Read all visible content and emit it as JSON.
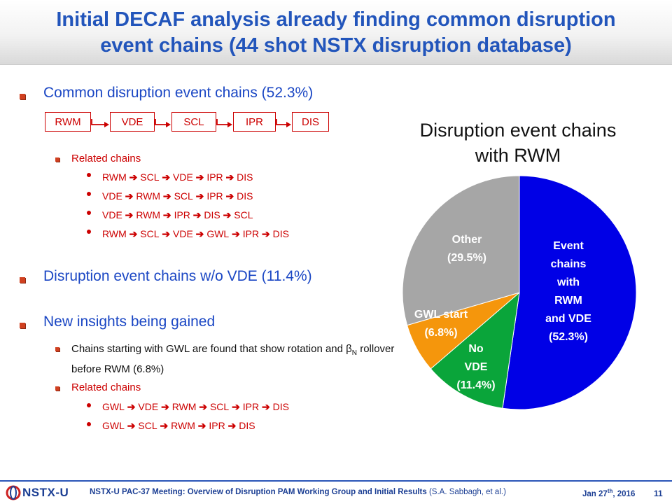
{
  "title": {
    "line1": "Initial DECAF analysis already finding common disruption",
    "line2": "event chains (44 shot NSTX disruption database)"
  },
  "common": {
    "heading": "Common disruption event chains (52.3%)",
    "chain": [
      "RWM",
      "VDE",
      "SCL",
      "IPR",
      "DIS"
    ],
    "related_label": "Related chains",
    "related": [
      [
        "RWM",
        "SCL",
        "VDE",
        "IPR",
        "DIS"
      ],
      [
        "VDE",
        "RWM",
        "SCL",
        "IPR",
        "DIS"
      ],
      [
        "VDE",
        "RWM",
        "IPR",
        "DIS",
        "SCL"
      ],
      [
        "RWM",
        "SCL",
        "VDE",
        "GWL",
        "IPR",
        "DIS"
      ]
    ]
  },
  "novde": {
    "heading": "Disruption event chains w/o VDE (11.4%)"
  },
  "insights": {
    "heading": "New insights being gained",
    "gwl_text_pre": "Chains starting with GWL are found that show rotation and ",
    "beta": "β",
    "beta_sub": "N",
    "gwl_text_post": " rollover before RWM (6.8%)",
    "related_label": "Related chains",
    "related": [
      [
        "GWL",
        "VDE",
        "RWM",
        "SCL",
        "IPR",
        "DIS"
      ],
      [
        "GWL",
        "SCL",
        "RWM",
        "IPR",
        "DIS"
      ]
    ]
  },
  "arrow_glyph": "➔",
  "chart_data": {
    "type": "pie",
    "title": "Disruption event chains with RWM",
    "start_angle_deg": 0,
    "direction": "clockwise",
    "slices": [
      {
        "label": [
          "Event",
          "chains",
          "with",
          "RWM",
          "and VDE",
          "(52.3%)"
        ],
        "value": 52.3,
        "color": "#0000e6"
      },
      {
        "label": [
          "No",
          "VDE",
          "(11.4%)"
        ],
        "value": 11.4,
        "color": "#0aa53a"
      },
      {
        "label": [
          "GWL start",
          "(6.8%)"
        ],
        "value": 6.8,
        "color": "#f5960c"
      },
      {
        "label": [
          "Other",
          "(29.5%)"
        ],
        "value": 29.5,
        "color": "#a6a6a6"
      }
    ]
  },
  "footer": {
    "logo": "NSTX-U",
    "meeting": "NSTX-U PAC-37 Meeting: Overview of Disruption PAM Working Group and Initial Results",
    "authors": " (S.A. Sabbagh, et al.)",
    "date_pre": "Jan 27",
    "date_sup": "th",
    "date_post": ", 2016",
    "page": "11"
  },
  "colors": {
    "title": "#2255bb",
    "accent_red": "#cc0000",
    "heading_blue": "#1b47c4"
  }
}
